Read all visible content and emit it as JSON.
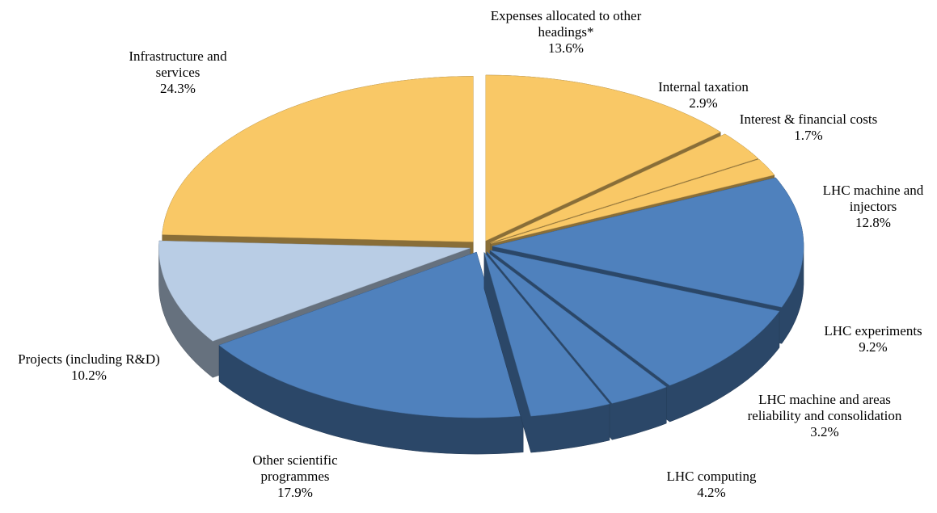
{
  "chart_data": {
    "type": "pie3d",
    "categories": [
      "Expenses allocated to other headings*",
      "Internal taxation",
      "Interest & financial costs",
      "LHC machine and injectors",
      "LHC experiments",
      "LHC machine and areas reliability and consolidation",
      "LHC computing",
      "Other scientific programmes",
      "Projects (including R&D)",
      "Infrastructure and services"
    ],
    "values": [
      13.6,
      2.9,
      1.7,
      12.8,
      9.2,
      3.2,
      4.2,
      17.9,
      10.2,
      24.3
    ],
    "value_labels": [
      "13.6%",
      "2.9%",
      "1.7%",
      "12.8%",
      "9.2%",
      "3.2%",
      "4.2%",
      "17.9%",
      "10.2%",
      "24.3%"
    ],
    "colors": [
      "#f9c866",
      "#f9c866",
      "#f9c866",
      "#4f81bd",
      "#4f81bd",
      "#4f81bd",
      "#4f81bd",
      "#4f81bd",
      "#b9cde5",
      "#f9c866"
    ]
  }
}
